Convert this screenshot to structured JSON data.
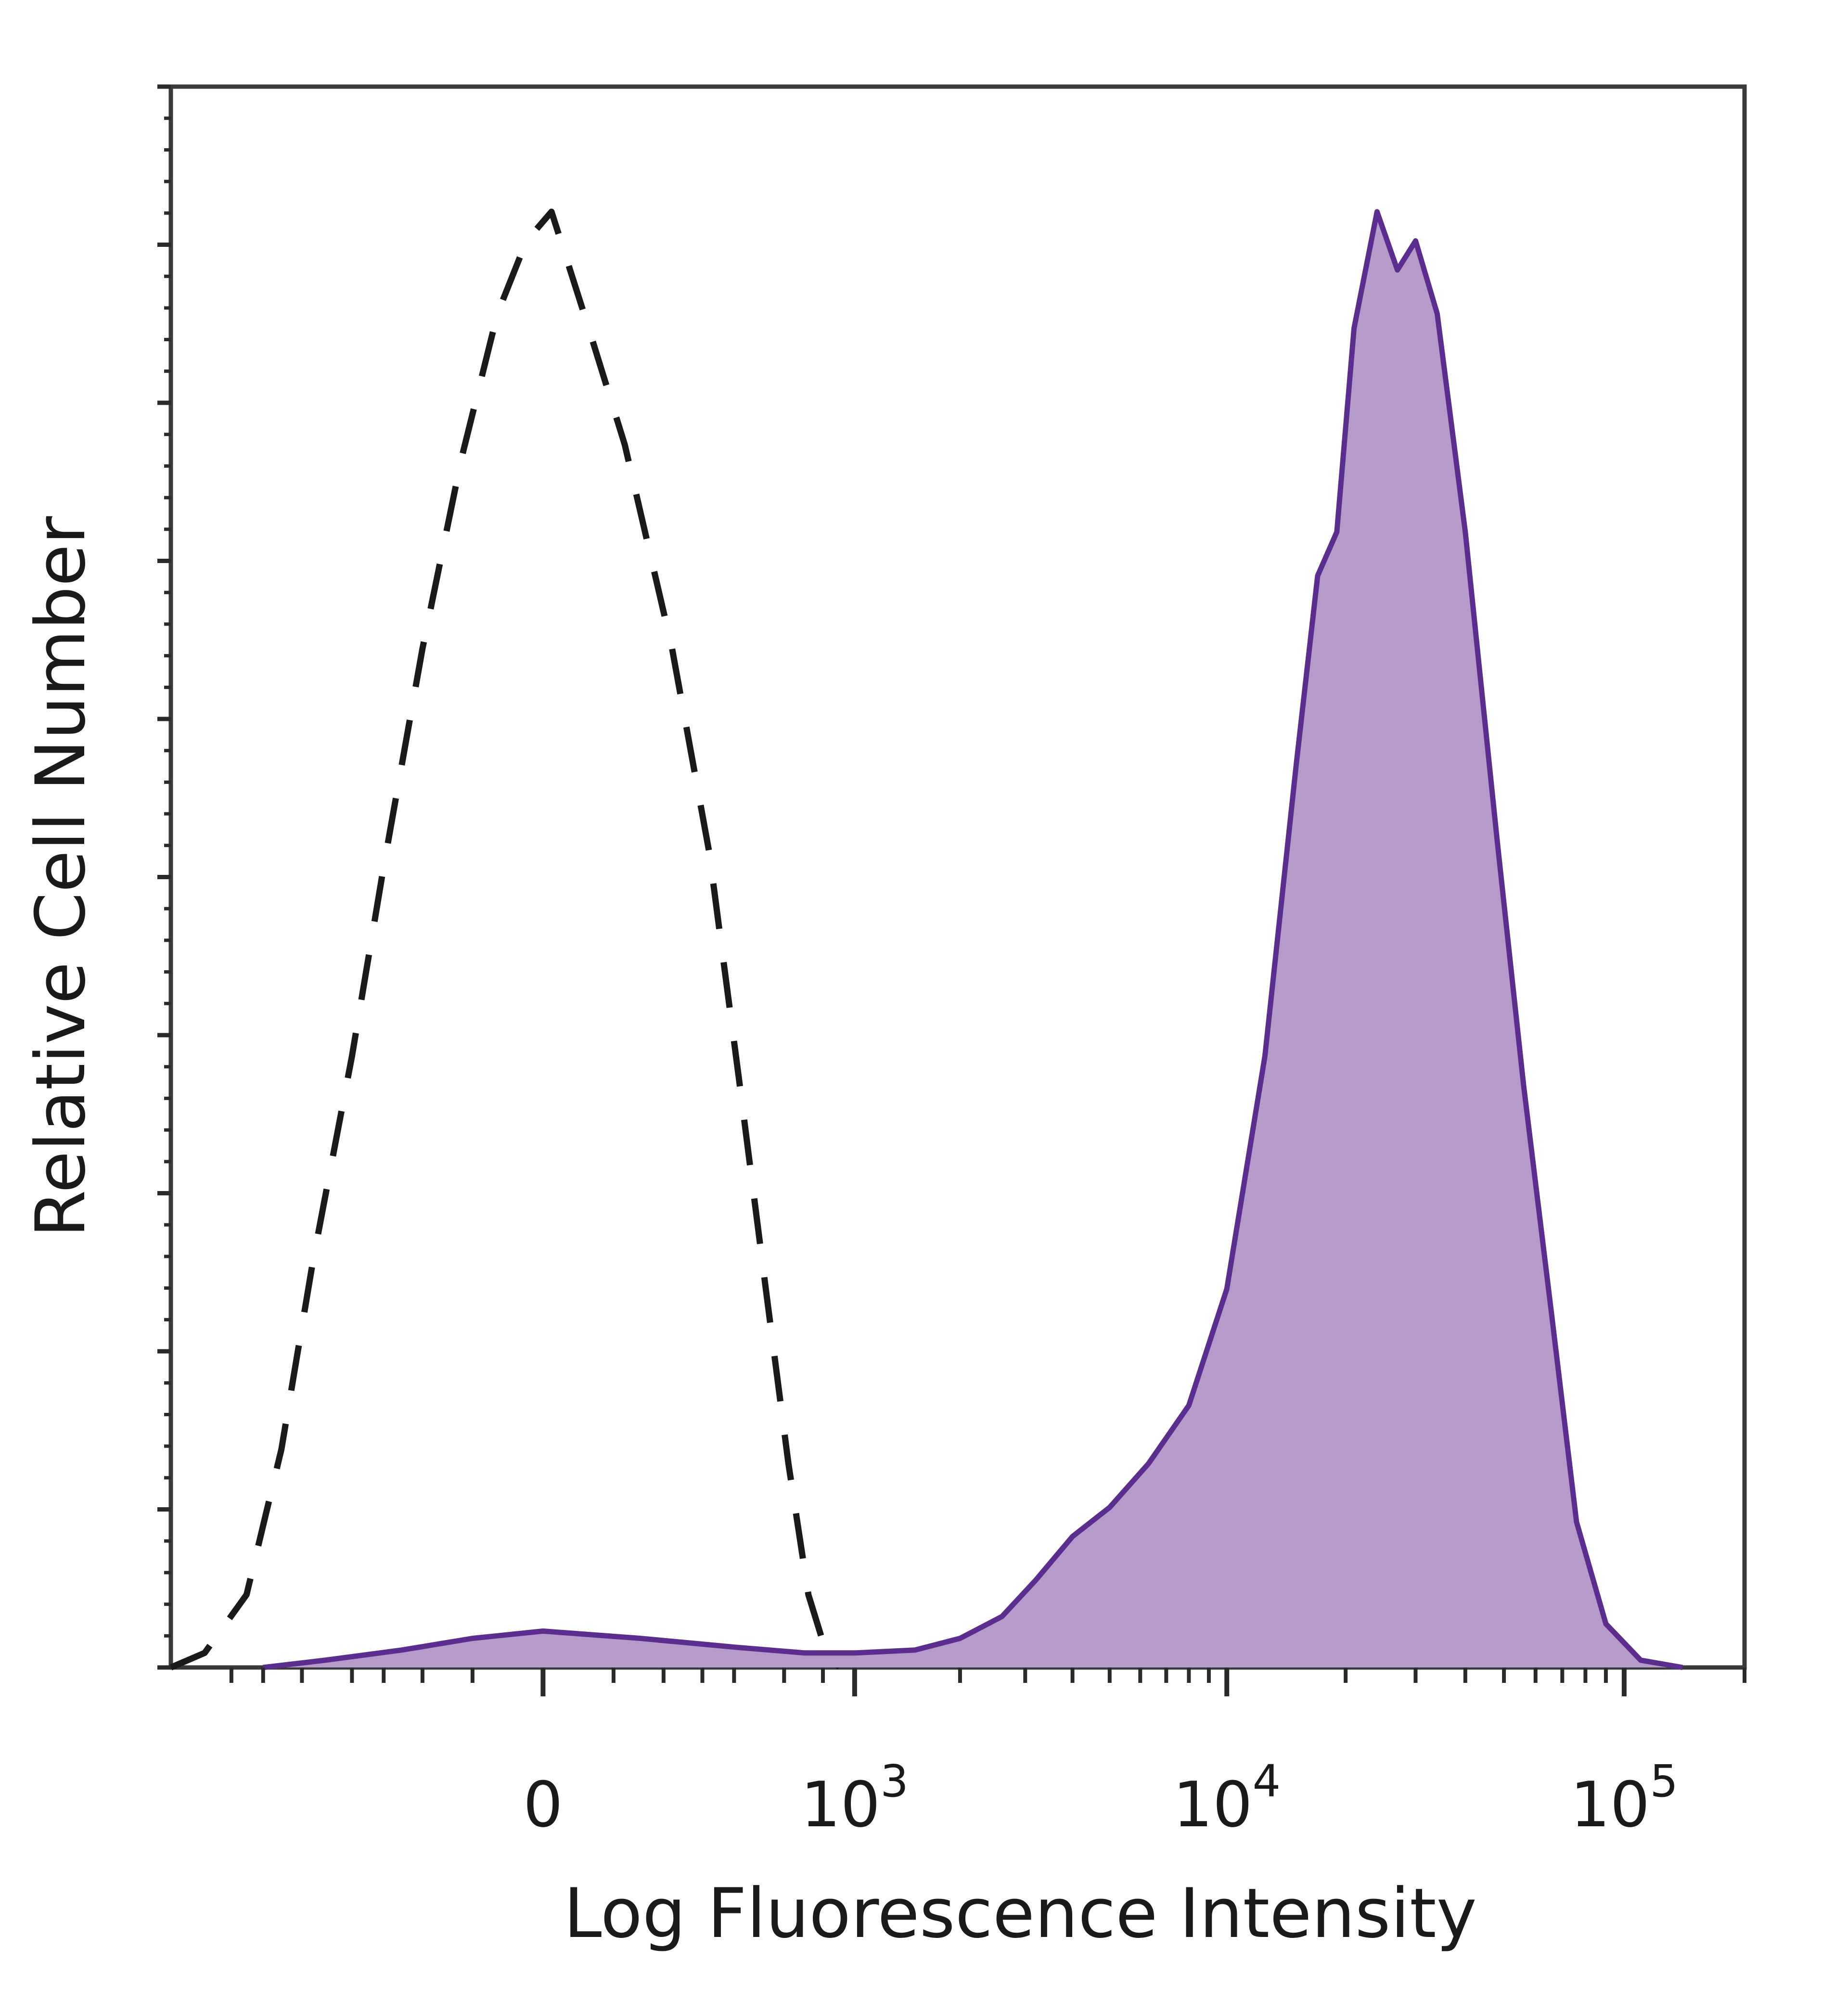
{
  "chart_data": {
    "type": "area",
    "title": "",
    "xlabel": "Log Fluorescence Intensity",
    "ylabel": "Relative Cell Number",
    "x_scale": "biexponential",
    "x_range": [
      -1500,
      200000
    ],
    "y_range": [
      0,
      1
    ],
    "grid": false,
    "legend": "none",
    "x_ticks": [
      {
        "value": 0,
        "base": "0",
        "exp": ""
      },
      {
        "value": 1000,
        "base": "10",
        "exp": "3"
      },
      {
        "value": 10000,
        "base": "10",
        "exp": "4"
      },
      {
        "value": 100000,
        "base": "10",
        "exp": "5"
      }
    ],
    "series": [
      {
        "style": "dashed",
        "color": "#1a1a1a",
        "fill": "none",
        "points": [
          [
            -1500,
            0.0
          ],
          [
            -1200,
            0.01
          ],
          [
            -900,
            0.05
          ],
          [
            -700,
            0.15
          ],
          [
            -550,
            0.28
          ],
          [
            -400,
            0.42
          ],
          [
            -300,
            0.55
          ],
          [
            -200,
            0.7
          ],
          [
            -120,
            0.83
          ],
          [
            -60,
            0.93
          ],
          [
            -20,
            0.98
          ],
          [
            10,
            1.0
          ],
          [
            60,
            0.92
          ],
          [
            120,
            0.84
          ],
          [
            220,
            0.7
          ],
          [
            320,
            0.56
          ],
          [
            420,
            0.4
          ],
          [
            520,
            0.26
          ],
          [
            620,
            0.14
          ],
          [
            720,
            0.05
          ],
          [
            820,
            0.01
          ],
          [
            900,
            0.0
          ]
        ]
      },
      {
        "style": "solid",
        "color": "#5b2d8e",
        "fill": "#b49bc9",
        "points": [
          [
            -800,
            0.0
          ],
          [
            -500,
            0.005
          ],
          [
            -250,
            0.012
          ],
          [
            -100,
            0.02
          ],
          [
            0,
            0.025
          ],
          [
            150,
            0.02
          ],
          [
            400,
            0.014
          ],
          [
            700,
            0.01
          ],
          [
            1000,
            0.01
          ],
          [
            1500,
            0.012
          ],
          [
            2000,
            0.02
          ],
          [
            2600,
            0.035
          ],
          [
            3200,
            0.06
          ],
          [
            4000,
            0.09
          ],
          [
            5000,
            0.11
          ],
          [
            6300,
            0.14
          ],
          [
            8000,
            0.18
          ],
          [
            10000,
            0.26
          ],
          [
            12500,
            0.42
          ],
          [
            15000,
            0.62
          ],
          [
            17000,
            0.75
          ],
          [
            19000,
            0.78
          ],
          [
            21000,
            0.92
          ],
          [
            24000,
            1.0
          ],
          [
            27000,
            0.96
          ],
          [
            30000,
            0.98
          ],
          [
            34000,
            0.93
          ],
          [
            40000,
            0.78
          ],
          [
            48000,
            0.57
          ],
          [
            56000,
            0.4
          ],
          [
            66000,
            0.24
          ],
          [
            76000,
            0.1
          ],
          [
            90000,
            0.03
          ],
          [
            110000,
            0.005
          ],
          [
            140000,
            0.0
          ]
        ]
      }
    ]
  }
}
